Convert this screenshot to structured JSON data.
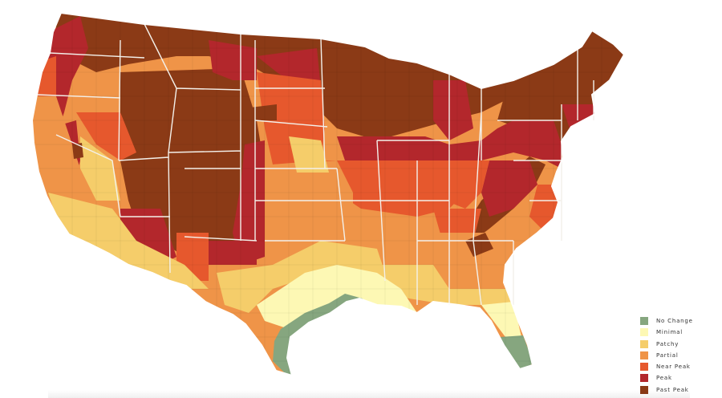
{
  "legend": {
    "items": [
      {
        "label": "No Change",
        "color": "#86a67f"
      },
      {
        "label": "Minimal",
        "color": "#fdf8b4"
      },
      {
        "label": "Patchy",
        "color": "#f5cd6a"
      },
      {
        "label": "Partial",
        "color": "#ef9448"
      },
      {
        "label": "Near Peak",
        "color": "#e6582d"
      },
      {
        "label": "Peak",
        "color": "#b3272c"
      },
      {
        "label": "Past Peak",
        "color": "#8b3a16"
      }
    ]
  },
  "map": {
    "subject": "contiguous-united-states-fall-foliage",
    "region_levels": [
      {
        "region": "Washington-Oregon-Cascades",
        "level": "Past Peak"
      },
      {
        "region": "Pacific-Northwest-coast",
        "level": "Near Peak"
      },
      {
        "region": "Northern-Rockies",
        "level": "Past Peak"
      },
      {
        "region": "Upper-Midwest",
        "level": "Past Peak"
      },
      {
        "region": "New-England",
        "level": "Past Peak"
      },
      {
        "region": "California-coast",
        "level": "Partial"
      },
      {
        "region": "Southern-California",
        "level": "Patchy"
      },
      {
        "region": "Colorado-Utah",
        "level": "Past Peak"
      },
      {
        "region": "Central-Plains",
        "level": "Near Peak"
      },
      {
        "region": "Southern-Plains",
        "level": "Partial"
      },
      {
        "region": "Iowa-Illinois",
        "level": "Peak"
      },
      {
        "region": "Appalachians",
        "level": "Past Peak"
      },
      {
        "region": "Southeast",
        "level": "Partial"
      },
      {
        "region": "Gulf-coast",
        "level": "Patchy"
      },
      {
        "region": "South-Texas",
        "level": "Minimal"
      },
      {
        "region": "Texas-coastal-plain",
        "level": "No Change"
      },
      {
        "region": "South-Florida",
        "level": "No Change"
      },
      {
        "region": "North-Florida",
        "level": "Minimal"
      }
    ]
  }
}
